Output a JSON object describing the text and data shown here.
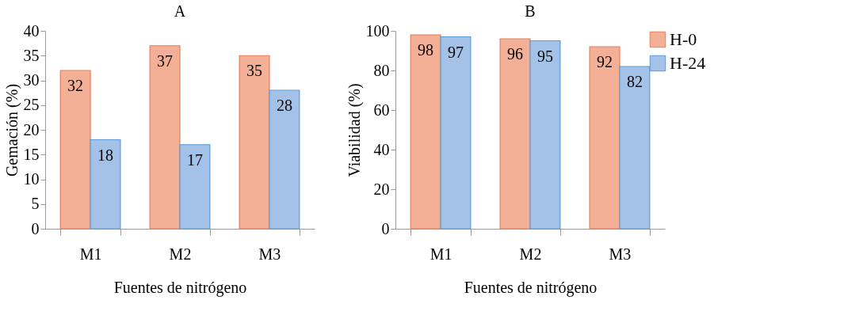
{
  "chart_data": [
    {
      "type": "bar",
      "title": "A",
      "xlabel": "Fuentes de nitrógeno",
      "ylabel": "Gemación (%)",
      "categories": [
        "M1",
        "M2",
        "M3"
      ],
      "series": [
        {
          "name": "H-0",
          "color": "#f4b096",
          "values": [
            32,
            37,
            35
          ]
        },
        {
          "name": "H-24",
          "color": "#a4c2e8",
          "values": [
            18,
            17,
            28
          ]
        }
      ],
      "ylim": [
        0,
        40
      ],
      "yticks": [
        0,
        5,
        10,
        15,
        20,
        25,
        30,
        35,
        40
      ],
      "grid": false,
      "legend": "top right",
      "data_labels": true
    },
    {
      "type": "bar",
      "title": "B",
      "xlabel": "Fuentes de nitrógeno",
      "ylabel": "Viabilidad (%)",
      "categories": [
        "M1",
        "M2",
        "M3"
      ],
      "series": [
        {
          "name": "H-0",
          "color": "#f4b096",
          "values": [
            98,
            96,
            92
          ]
        },
        {
          "name": "H-24",
          "color": "#a4c2e8",
          "values": [
            97,
            95,
            82
          ]
        }
      ],
      "ylim": [
        0,
        100
      ],
      "yticks": [
        0,
        20,
        40,
        60,
        80,
        100
      ],
      "grid": false,
      "legend": "top right",
      "data_labels": true
    }
  ]
}
